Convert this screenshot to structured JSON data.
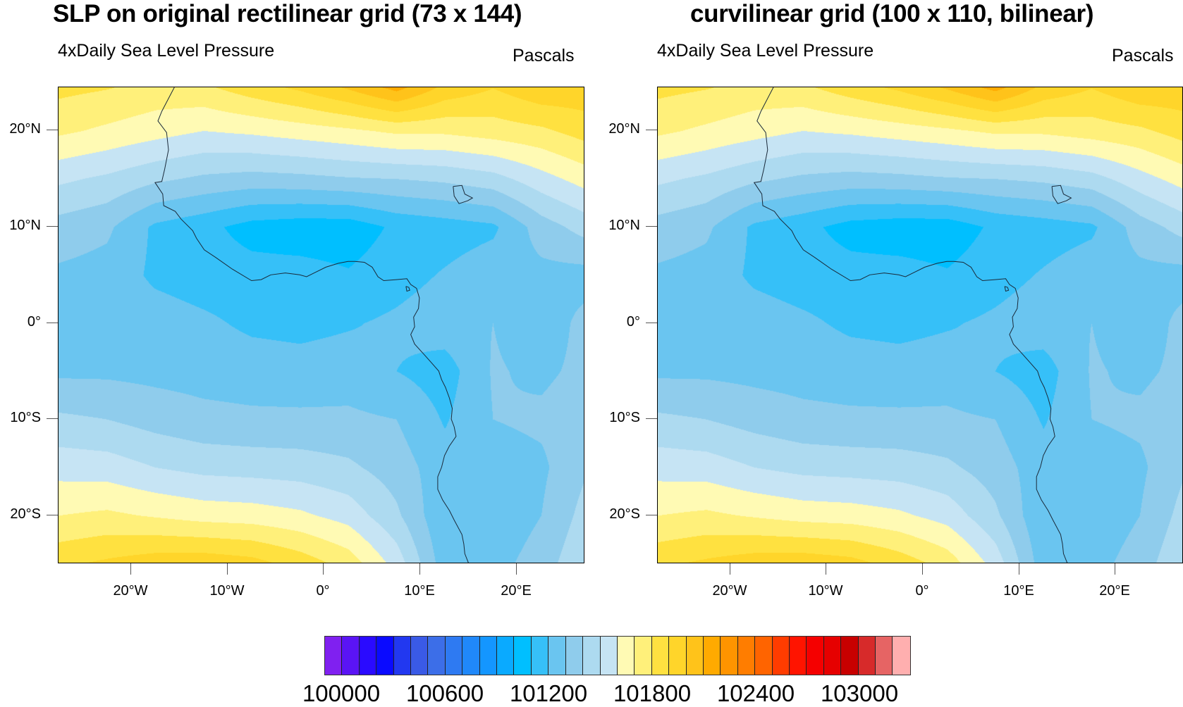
{
  "panels": [
    {
      "title": "SLP on original rectilinear grid (73 x 144)",
      "left_string": "4xDaily Sea Level Pressure",
      "right_string": "Pascals"
    },
    {
      "title": "curvilinear grid (100 x 110, bilinear)",
      "left_string": "4xDaily Sea Level Pressure",
      "right_string": "Pascals"
    }
  ],
  "chart_data": {
    "type": "heatmap",
    "subtype": "filled-contour-map",
    "variable": "4xDaily Sea Level Pressure",
    "units": "Pascals",
    "xlim": [
      -27.5,
      27
    ],
    "ylim": [
      -25,
      24.5
    ],
    "x_ticks": [
      {
        "value": -20,
        "label": "20°W"
      },
      {
        "value": -10,
        "label": "10°W"
      },
      {
        "value": 0,
        "label": "0°"
      },
      {
        "value": 10,
        "label": "10°E"
      },
      {
        "value": 20,
        "label": "20°E"
      }
    ],
    "y_ticks": [
      {
        "value": 20,
        "label": "20°N"
      },
      {
        "value": 10,
        "label": "10°N"
      },
      {
        "value": 0,
        "label": "0°"
      },
      {
        "value": -10,
        "label": "10°S"
      },
      {
        "value": -20,
        "label": "20°S"
      }
    ],
    "contour_levels": {
      "min": 99900,
      "max": 103200,
      "step": 100
    },
    "colorbar_labels": [
      "100000",
      "100600",
      "101200",
      "101800",
      "102400",
      "103000"
    ],
    "colors": [
      "#8020F0",
      "#5A14F5",
      "#2A0AFF",
      "#0A0AFF",
      "#2238F0",
      "#3A5AE6",
      "#3C6EE8",
      "#2E7AF2",
      "#2088FA",
      "#1496FF",
      "#0AAAFF",
      "#00BFFF",
      "#36C0F8",
      "#6AC5F0",
      "#8FCCEC",
      "#ADDAF0",
      "#C6E4F4",
      "#FFFAB4",
      "#FFF07A",
      "#FFE140",
      "#FFD52A",
      "#FFC31A",
      "#FFAA00",
      "#FF9400",
      "#FF7D00",
      "#FF6400",
      "#FF3C00",
      "#FF1400",
      "#F50000",
      "#E60000",
      "#C80000",
      "#D72A2A",
      "#E66464",
      "#FFAFAF"
    ],
    "grid_lon": [
      -27.5,
      -22.5,
      -17.5,
      -12.5,
      -7.5,
      -2.5,
      2.5,
      7.5,
      12.5,
      17.5,
      22.5,
      27.5
    ],
    "grid_lat": [
      25,
      20,
      15,
      10,
      5,
      0,
      -5,
      -10,
      -15,
      -20,
      -25
    ],
    "slp_values": [
      [
        101840,
        101820,
        101780,
        101800,
        101880,
        101950,
        102050,
        102180,
        102000,
        101920,
        102000,
        101980
      ],
      [
        101720,
        101680,
        101640,
        101600,
        101620,
        101650,
        101680,
        101720,
        101720,
        101750,
        101780,
        101850
      ],
      [
        101520,
        101480,
        101420,
        101380,
        101360,
        101370,
        101390,
        101400,
        101420,
        101460,
        101560,
        101650
      ],
      [
        101360,
        101320,
        101180,
        101130,
        101060,
        101040,
        101040,
        101120,
        101150,
        101180,
        101350,
        101450
      ],
      [
        101280,
        101260,
        101180,
        101150,
        101140,
        101140,
        101110,
        101160,
        101210,
        101260,
        101270,
        101260
      ],
      [
        101260,
        101260,
        101250,
        101220,
        101180,
        101170,
        101190,
        101220,
        101260,
        101300,
        101240,
        101340
      ],
      [
        101280,
        101280,
        101270,
        101260,
        101250,
        101240,
        101250,
        101200,
        101150,
        101310,
        101280,
        101330
      ],
      [
        101420,
        101400,
        101360,
        101330,
        101320,
        101320,
        101320,
        101300,
        101190,
        101300,
        101320,
        101360
      ],
      [
        101560,
        101550,
        101500,
        101470,
        101460,
        101450,
        101420,
        101350,
        101240,
        101250,
        101280,
        101400
      ],
      [
        101700,
        101720,
        101690,
        101660,
        101650,
        101620,
        101560,
        101420,
        101210,
        101220,
        101300,
        101450
      ],
      [
        101880,
        101920,
        101960,
        101970,
        101940,
        101860,
        101760,
        101560,
        101240,
        101260,
        101350,
        101500
      ]
    ]
  }
}
